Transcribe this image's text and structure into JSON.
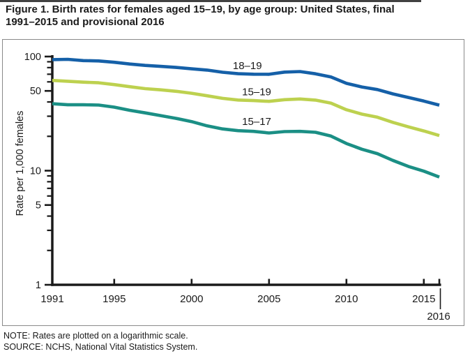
{
  "page": {
    "title_line1": "Figure 1. Birth rates for females aged 15–19, by age group: United States, final",
    "title_line2": "1991–2015 and provisional 2016",
    "note": "NOTE: Rates are plotted on a logarithmic scale.",
    "source": "SOURCE: NCHS, National Vital Statistics System."
  },
  "chart_data": {
    "type": "line",
    "title": "Figure 1. Birth rates for females aged 15–19, by age group: United States, final 1991–2015 and provisional 2016",
    "xlabel": "",
    "ylabel": "Rate per 1,000 females",
    "y_scale": "log",
    "ylim": [
      1,
      100
    ],
    "xlim": [
      1991,
      2016
    ],
    "grid": false,
    "legend_position": "inline-labels",
    "axis_color": "#1a1a1a",
    "x": [
      1991,
      1992,
      1993,
      1994,
      1995,
      1996,
      1997,
      1998,
      1999,
      2000,
      2001,
      2002,
      2003,
      2004,
      2005,
      2006,
      2007,
      2008,
      2009,
      2010,
      2011,
      2012,
      2013,
      2014,
      2015,
      2016
    ],
    "series": [
      {
        "name": "18–19",
        "color": "#1560a8",
        "values": [
          94.0,
          94.5,
          92.1,
          91.5,
          89.1,
          86.0,
          83.6,
          82.0,
          80.3,
          78.1,
          76.1,
          72.8,
          70.7,
          70.0,
          69.9,
          73.0,
          73.9,
          70.6,
          66.2,
          58.2,
          54.1,
          51.4,
          47.1,
          43.8,
          40.7,
          37.5
        ]
      },
      {
        "name": "15–19",
        "color": "#bdd14f",
        "values": [
          61.8,
          60.7,
          59.6,
          58.9,
          56.8,
          54.4,
          52.3,
          51.1,
          49.6,
          47.7,
          45.3,
          43.0,
          41.6,
          41.1,
          40.5,
          41.9,
          42.5,
          41.5,
          39.1,
          34.2,
          31.3,
          29.4,
          26.5,
          24.2,
          22.3,
          20.3
        ]
      },
      {
        "name": "15–17",
        "color": "#1b8f85",
        "values": [
          38.6,
          37.8,
          37.8,
          37.6,
          36.0,
          33.8,
          32.1,
          30.4,
          28.7,
          26.9,
          24.7,
          23.2,
          22.4,
          22.1,
          21.4,
          22.0,
          22.1,
          21.7,
          20.1,
          17.3,
          15.4,
          14.1,
          12.3,
          10.9,
          9.9,
          8.8
        ]
      }
    ],
    "y_major_ticks": [
      100,
      50,
      10,
      5,
      1
    ],
    "y_minor_ticks": [
      90,
      80,
      70,
      60,
      40,
      30,
      20,
      9,
      8,
      7,
      6,
      4,
      3,
      2
    ],
    "x_ticks": [
      1995,
      2000,
      2005,
      2010,
      2015,
      2016
    ],
    "x_labels": [
      {
        "year": 1991,
        "text": "1991"
      },
      {
        "year": 1995,
        "text": "1995"
      },
      {
        "year": 2000,
        "text": "2000"
      },
      {
        "year": 2005,
        "text": "2005"
      },
      {
        "year": 2010,
        "text": "2010"
      },
      {
        "year": 2015,
        "text": "2015"
      }
    ],
    "x_extra_label": {
      "year": 2016,
      "text": "2016"
    },
    "annotations": [
      {
        "text": "18–19",
        "year": 2003.6,
        "value": 83
      },
      {
        "text": "15–19",
        "year": 2004.2,
        "value": 49
      },
      {
        "text": "15–17",
        "year": 2004.2,
        "value": 27
      }
    ]
  }
}
